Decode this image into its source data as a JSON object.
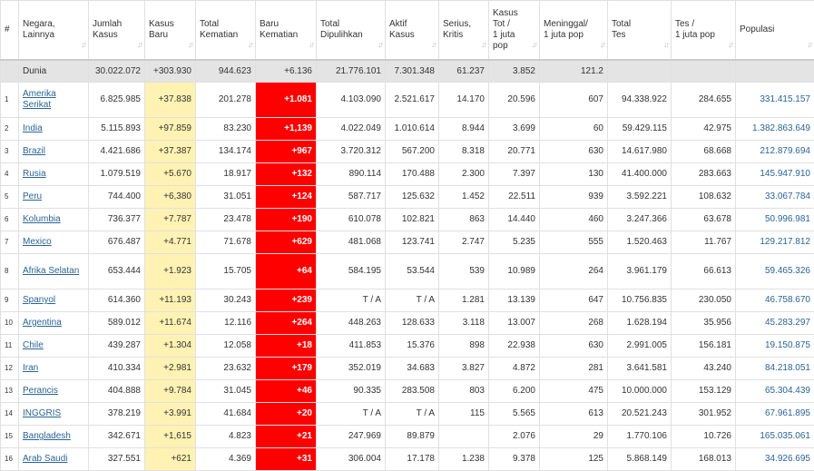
{
  "headers": [
    {
      "key": "rank",
      "label": "#"
    },
    {
      "key": "country",
      "label": "Negara,\nLainnya"
    },
    {
      "key": "cases",
      "label": "Jumlah\nKasus"
    },
    {
      "key": "newc",
      "label": "Kasus\nBaru"
    },
    {
      "key": "deaths",
      "label": "Total\nKematian"
    },
    {
      "key": "newd",
      "label": "Baru\nKematian"
    },
    {
      "key": "recov",
      "label": "Total\nDipulihkan"
    },
    {
      "key": "active",
      "label": "Aktif\nKasus"
    },
    {
      "key": "serious",
      "label": "Serius,\nKritis"
    },
    {
      "key": "cpm",
      "label": "Kasus\nTot /\n1 juta\npop"
    },
    {
      "key": "dpm",
      "label": "Meninggal/\n1 juta pop"
    },
    {
      "key": "tests",
      "label": "Total\nTes"
    },
    {
      "key": "tpm",
      "label": "Tes /\n1 juta pop"
    },
    {
      "key": "pop",
      "label": "Populasi"
    }
  ],
  "sort_icon": "sort-arrows-icon",
  "world": {
    "country": "Dunia",
    "cases": "30.022.072",
    "newc": "+303.930",
    "deaths": "944.623",
    "newd": "+6.136",
    "recov": "21.776.101",
    "active": "7.301.348",
    "serious": "61.237",
    "cpm": "3.852",
    "dpm": "121.2",
    "tests": "",
    "tpm": "",
    "pop": ""
  },
  "rows": [
    {
      "rank": "1",
      "country": "Amerika Serikat",
      "cases": "6.825.985",
      "newc": "+37.838",
      "deaths": "201.278",
      "newd": "+1.081",
      "recov": "4.103.090",
      "active": "2.521.617",
      "serious": "14.170",
      "cpm": "20.596",
      "dpm": "607",
      "tests": "94.338.922",
      "tpm": "284.655",
      "pop": "331.415.157",
      "tall": true
    },
    {
      "rank": "2",
      "country": "India",
      "cases": "5.115.893",
      "newc": "+97.859",
      "deaths": "83.230",
      "newd": "+1,139",
      "recov": "4.022.049",
      "active": "1.010.614",
      "serious": "8.944",
      "cpm": "3.699",
      "dpm": "60",
      "tests": "59.429.115",
      "tpm": "42.975",
      "pop": "1.382.863.649"
    },
    {
      "rank": "3",
      "country": "Brazil",
      "cases": "4.421.686",
      "newc": "+37.387",
      "deaths": "134.174",
      "newd": "+967",
      "recov": "3.720.312",
      "active": "567.200",
      "serious": "8.318",
      "cpm": "20.771",
      "dpm": "630",
      "tests": "14.617.980",
      "tpm": "68.668",
      "pop": "212.879.694"
    },
    {
      "rank": "4",
      "country": "Rusia",
      "cases": "1.079.519",
      "newc": "+5.670",
      "deaths": "18.917",
      "newd": "+132",
      "recov": "890.114",
      "active": "170.488",
      "serious": "2.300",
      "cpm": "7.397",
      "dpm": "130",
      "tests": "41.400.000",
      "tpm": "283.663",
      "pop": "145.947.910"
    },
    {
      "rank": "5",
      "country": "Peru",
      "cases": "744.400",
      "newc": "+6,380",
      "deaths": "31.051",
      "newd": "+124",
      "recov": "587.717",
      "active": "125.632",
      "serious": "1.452",
      "cpm": "22.511",
      "dpm": "939",
      "tests": "3.592.221",
      "tpm": "108.632",
      "pop": "33.067.784"
    },
    {
      "rank": "6",
      "country": "Kolumbia",
      "cases": "736.377",
      "newc": "+7.787",
      "deaths": "23.478",
      "newd": "+190",
      "recov": "610.078",
      "active": "102.821",
      "serious": "863",
      "cpm": "14.440",
      "dpm": "460",
      "tests": "3.247.366",
      "tpm": "63.678",
      "pop": "50.996.981"
    },
    {
      "rank": "7",
      "country": "Mexico",
      "cases": "676.487",
      "newc": "+4.771",
      "deaths": "71.678",
      "newd": "+629",
      "recov": "481.068",
      "active": "123.741",
      "serious": "2.747",
      "cpm": "5.235",
      "dpm": "555",
      "tests": "1.520.463",
      "tpm": "11.767",
      "pop": "129.217.812"
    },
    {
      "rank": "8",
      "country": "Afrika Selatan",
      "cases": "653.444",
      "newc": "+1.923",
      "deaths": "15.705",
      "newd": "+64",
      "recov": "584.195",
      "active": "53.544",
      "serious": "539",
      "cpm": "10.989",
      "dpm": "264",
      "tests": "3.961.179",
      "tpm": "66.613",
      "pop": "59.465.326",
      "tall": true
    },
    {
      "rank": "9",
      "country": "Spanyol",
      "cases": "614.360",
      "newc": "+11.193",
      "deaths": "30.243",
      "newd": "+239",
      "recov": "T / A",
      "active": "T / A",
      "serious": "1.281",
      "cpm": "13.139",
      "dpm": "647",
      "tests": "10.756.835",
      "tpm": "230.050",
      "pop": "46.758.670"
    },
    {
      "rank": "10",
      "country": "Argentina",
      "cases": "589.012",
      "newc": "+11.674",
      "deaths": "12.116",
      "newd": "+264",
      "recov": "448.263",
      "active": "128.633",
      "serious": "3.118",
      "cpm": "13.007",
      "dpm": "268",
      "tests": "1.628.194",
      "tpm": "35.956",
      "pop": "45.283.297"
    },
    {
      "rank": "11",
      "country": "Chile",
      "cases": "439.287",
      "newc": "+1.304",
      "deaths": "12.058",
      "newd": "+18",
      "recov": "411.853",
      "active": "15.376",
      "serious": "898",
      "cpm": "22.938",
      "dpm": "630",
      "tests": "2.991.005",
      "tpm": "156.181",
      "pop": "19.150.875"
    },
    {
      "rank": "12",
      "country": "Iran",
      "cases": "410.334",
      "newc": "+2.981",
      "deaths": "23.632",
      "newd": "+179",
      "recov": "352.019",
      "active": "34.683",
      "serious": "3.827",
      "cpm": "4.872",
      "dpm": "281",
      "tests": "3.641.581",
      "tpm": "43.240",
      "pop": "84.218.051"
    },
    {
      "rank": "13",
      "country": "Perancis",
      "cases": "404.888",
      "newc": "+9.784",
      "deaths": "31.045",
      "newd": "+46",
      "recov": "90.335",
      "active": "283.508",
      "serious": "803",
      "cpm": "6.200",
      "dpm": "475",
      "tests": "10.000.000",
      "tpm": "153.129",
      "pop": "65.304.439"
    },
    {
      "rank": "14",
      "country": "INGGRIS",
      "cases": "378.219",
      "newc": "+3.991",
      "deaths": "41.684",
      "newd": "+20",
      "recov": "T / A",
      "active": "T / A",
      "serious": "115",
      "cpm": "5.565",
      "dpm": "613",
      "tests": "20.521.243",
      "tpm": "301.952",
      "pop": "67.961.895"
    },
    {
      "rank": "15",
      "country": "Bangladesh",
      "cases": "342.671",
      "newc": "+1,615",
      "deaths": "4.823",
      "newd": "+21",
      "recov": "247.969",
      "active": "89.879",
      "serious": "",
      "cpm": "2.076",
      "dpm": "29",
      "tests": "1.770.106",
      "tpm": "10.726",
      "pop": "165.035.061"
    },
    {
      "rank": "16",
      "country": "Arab Saudi",
      "cases": "327.551",
      "newc": "+621",
      "deaths": "4.369",
      "newd": "+31",
      "recov": "306.004",
      "active": "17.178",
      "serious": "1.238",
      "cpm": "9.378",
      "dpm": "125",
      "tests": "5.868.149",
      "tpm": "168.013",
      "pop": "34.926.695"
    }
  ]
}
